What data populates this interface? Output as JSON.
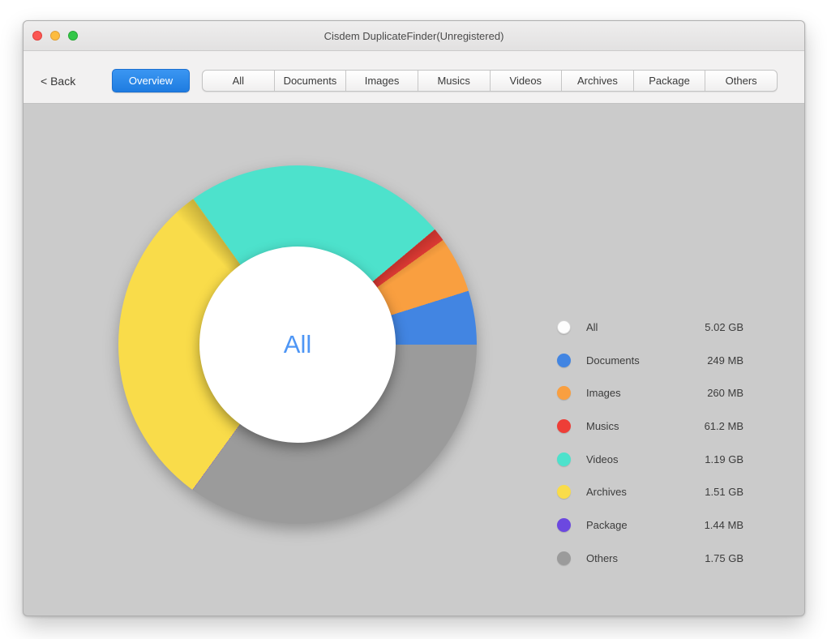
{
  "window": {
    "title": "Cisdem DuplicateFinder(Unregistered)"
  },
  "toolbar": {
    "back_label": "< Back",
    "overview_label": "Overview",
    "active_button": "Overview",
    "tabs": [
      "All",
      "Documents",
      "Images",
      "Musics",
      "Videos",
      "Archives",
      "Package",
      "Others"
    ]
  },
  "colors": {
    "accent_blue": "#1E7CE0",
    "content_background": "#CBCBCB",
    "center_label_blue": "#4E96F5"
  },
  "chart_data": {
    "type": "pie",
    "subtype": "donut",
    "center_label": "All",
    "legend_position": "right",
    "total": {
      "label": "All",
      "value": "5.02 GB",
      "swatch": "outlined-white"
    },
    "items": [
      {
        "label": "Documents",
        "value": "249 MB",
        "size_mb": 249,
        "color": "#4285E2"
      },
      {
        "label": "Images",
        "value": "260 MB",
        "size_mb": 260,
        "color": "#F99F40"
      },
      {
        "label": "Musics",
        "value": "61.2 MB",
        "size_mb": 61.2,
        "color": "#EE3E37"
      },
      {
        "label": "Videos",
        "value": "1.19 GB",
        "size_mb": 1218.6,
        "color": "#4DE2CC"
      },
      {
        "label": "Archives",
        "value": "1.51 GB",
        "size_mb": 1546.2,
        "color": "#F9DC4A"
      },
      {
        "label": "Package",
        "value": "1.44 MB",
        "size_mb": 1.44,
        "color": "#6C48E0"
      },
      {
        "label": "Others",
        "value": "1.75 GB",
        "size_mb": 1792,
        "color": "#9B9B9B"
      }
    ],
    "clockwise_order_from_right": [
      "Others",
      "Package",
      "Archives",
      "Videos",
      "Musics",
      "Images",
      "Documents"
    ]
  }
}
